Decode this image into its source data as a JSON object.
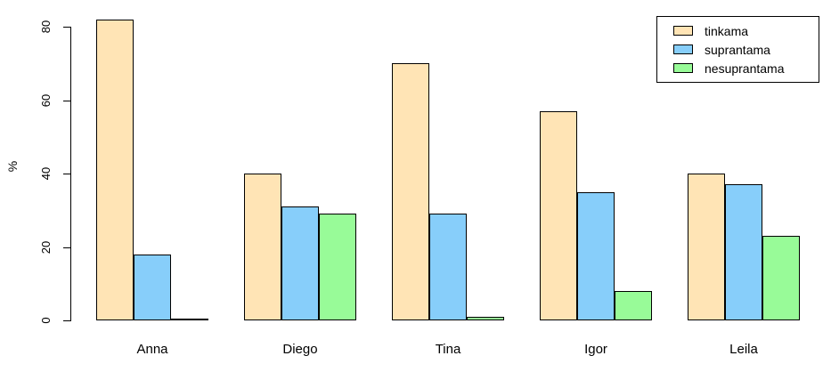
{
  "chart_data": {
    "type": "bar",
    "grouped": true,
    "title": "",
    "xlabel": "",
    "ylabel": "%",
    "categories": [
      "Anna",
      "Diego",
      "Tina",
      "Igor",
      "Leila"
    ],
    "series": [
      {
        "name": "tinkama",
        "color": "#FFE4B5",
        "values": [
          82,
          40,
          70,
          57,
          40
        ]
      },
      {
        "name": "suprantama",
        "color": "#87CEFA",
        "values": [
          18,
          31,
          29,
          35,
          37
        ]
      },
      {
        "name": "nesuprantama",
        "color": "#98FB98",
        "values": [
          0,
          29,
          1,
          8,
          23
        ]
      }
    ],
    "yticks": [
      0,
      20,
      40,
      60,
      80
    ],
    "ylim": [
      0,
      85
    ],
    "grid": false,
    "legend_position": "top-right",
    "background_color": "#FFFFFF",
    "axis_color": "#000000",
    "bar_border_color": "#000000"
  }
}
